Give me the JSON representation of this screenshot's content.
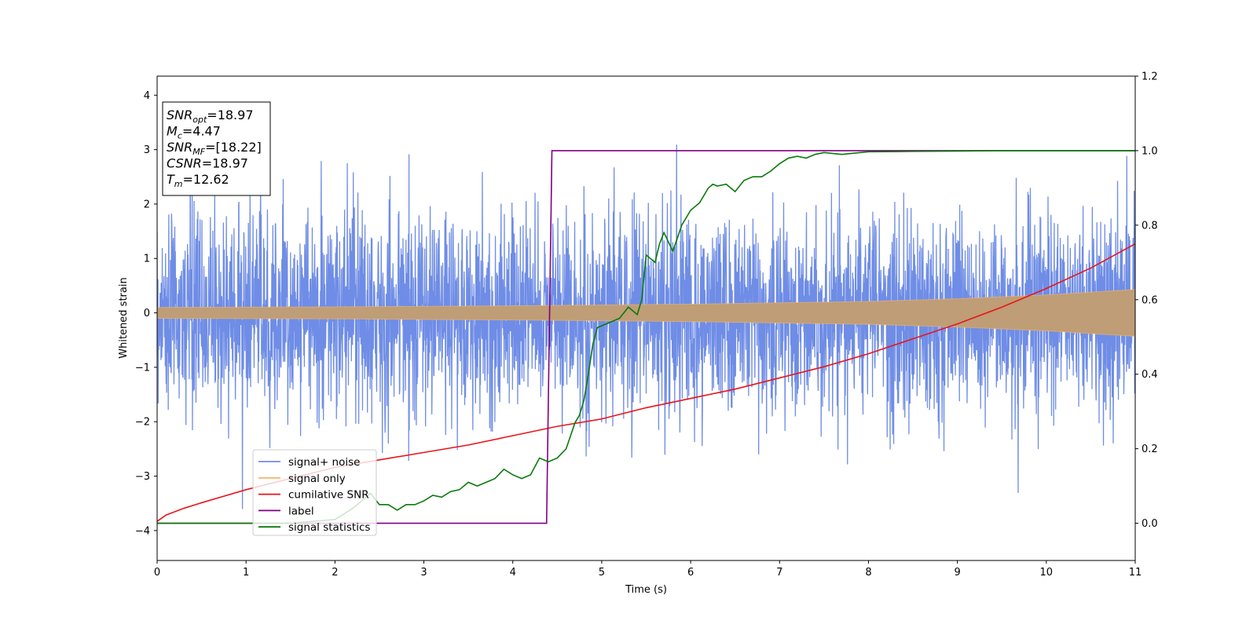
{
  "chart_data": {
    "type": "line",
    "xlabel": "Time (s)",
    "ylabel": "Whitened strain",
    "xlim": [
      0,
      11
    ],
    "ylim_left": [
      -4.55,
      4.35
    ],
    "ylim_right": [
      -0.1,
      1.2
    ],
    "x_ticks": [
      0,
      1,
      2,
      3,
      4,
      5,
      6,
      7,
      8,
      9,
      10,
      11
    ],
    "y_ticks_left": [
      -4,
      -3,
      -2,
      -1,
      0,
      1,
      2,
      3,
      4
    ],
    "y_ticks_right": [
      0.0,
      0.2,
      0.4,
      0.6,
      0.8,
      1.0,
      1.2
    ],
    "legend_position": "lower-left",
    "legend": [
      "signal+ noise",
      "signal only",
      "cumilative SNR",
      "label",
      "signal statistics"
    ],
    "colors": {
      "signal_noise": "#6f8de6",
      "signal_only": "#f5b56a",
      "cumulative_snr": "#e8151b",
      "label": "#800080",
      "signal_statistics": "#0a7a0a"
    },
    "annotation": [
      {
        "base": "SNR",
        "sub": "opt",
        "value": "=18.97"
      },
      {
        "base": "M",
        "sub": "c",
        "value": "=4.47"
      },
      {
        "base": "SNR",
        "sub": "MF",
        "value": "=[18.22]"
      },
      {
        "base": "CSNR",
        "sub": "",
        "value": "=18.97"
      },
      {
        "base": "T",
        "sub": "m",
        "value": "=12.62"
      }
    ],
    "series": [
      {
        "name": "signal+ noise",
        "axis": "left",
        "kind": "noise",
        "x_range": [
          0,
          11
        ],
        "typical_range": [
          -2.3,
          2.3
        ],
        "extreme_range": [
          -4.2,
          3.9
        ]
      },
      {
        "name": "signal only",
        "axis": "left",
        "kind": "chirp_envelope",
        "x": [
          0,
          2,
          4,
          6,
          8,
          9,
          10,
          11
        ],
        "amplitude": [
          0.1,
          0.11,
          0.13,
          0.16,
          0.21,
          0.26,
          0.33,
          0.43
        ]
      },
      {
        "name": "cumilative SNR",
        "axis": "right",
        "x": [
          0,
          0.1,
          0.3,
          0.5,
          1,
          1.5,
          2,
          2.5,
          3,
          3.5,
          4,
          4.5,
          5,
          5.5,
          6,
          6.5,
          7,
          7.5,
          8,
          8.5,
          9,
          9.5,
          10,
          10.5,
          11
        ],
        "y": [
          0.005,
          0.022,
          0.04,
          0.055,
          0.09,
          0.12,
          0.15,
          0.17,
          0.19,
          0.21,
          0.235,
          0.26,
          0.28,
          0.31,
          0.335,
          0.36,
          0.39,
          0.42,
          0.455,
          0.495,
          0.535,
          0.58,
          0.63,
          0.685,
          0.75
        ]
      },
      {
        "name": "label",
        "axis": "right",
        "x": [
          0,
          4.38,
          4.44,
          11
        ],
        "y": [
          0,
          0,
          1,
          1
        ]
      },
      {
        "name": "signal statistics",
        "axis": "right",
        "x": [
          0,
          1.5,
          2.0,
          2.2,
          2.3,
          2.4,
          2.5,
          2.6,
          2.7,
          2.8,
          2.9,
          3.0,
          3.1,
          3.2,
          3.3,
          3.4,
          3.5,
          3.6,
          3.7,
          3.8,
          3.9,
          4.0,
          4.1,
          4.2,
          4.3,
          4.4,
          4.5,
          4.6,
          4.7,
          4.75,
          4.8,
          4.85,
          4.9,
          4.95,
          5.0,
          5.1,
          5.2,
          5.3,
          5.4,
          5.45,
          5.5,
          5.6,
          5.65,
          5.7,
          5.8,
          5.9,
          6.0,
          6.1,
          6.2,
          6.25,
          6.3,
          6.4,
          6.5,
          6.6,
          6.7,
          6.8,
          6.9,
          7.0,
          7.1,
          7.2,
          7.3,
          7.4,
          7.5,
          7.7,
          8.0,
          8.5,
          9.0,
          9.5,
          10.0,
          11.0
        ],
        "y": [
          0.0,
          0.0,
          0.01,
          0.04,
          0.06,
          0.08,
          0.05,
          0.05,
          0.035,
          0.05,
          0.05,
          0.06,
          0.075,
          0.07,
          0.085,
          0.09,
          0.11,
          0.1,
          0.11,
          0.12,
          0.145,
          0.13,
          0.12,
          0.13,
          0.175,
          0.165,
          0.175,
          0.2,
          0.27,
          0.29,
          0.33,
          0.4,
          0.48,
          0.525,
          0.53,
          0.54,
          0.55,
          0.58,
          0.56,
          0.6,
          0.72,
          0.7,
          0.75,
          0.78,
          0.73,
          0.8,
          0.84,
          0.86,
          0.9,
          0.91,
          0.905,
          0.91,
          0.89,
          0.92,
          0.93,
          0.93,
          0.945,
          0.965,
          0.98,
          0.985,
          0.98,
          0.99,
          0.995,
          0.99,
          0.997,
          0.998,
          0.999,
          1.0,
          1.0,
          1.0
        ]
      }
    ]
  }
}
